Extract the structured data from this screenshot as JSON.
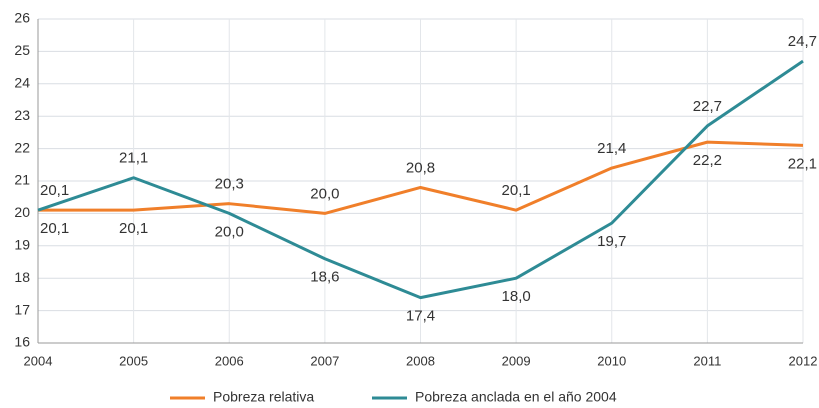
{
  "chart_data": {
    "type": "line",
    "categories": [
      "2004",
      "2005",
      "2006",
      "2007",
      "2008",
      "2009",
      "2010",
      "2011",
      "2012"
    ],
    "series": [
      {
        "name": "Pobreza relativa",
        "color": "#f07f2a",
        "values": [
          20.1,
          20.1,
          20.3,
          20.0,
          20.8,
          20.1,
          21.4,
          22.2,
          22.1
        ],
        "value_labels": [
          "20,1",
          "20,1",
          "20,3",
          "20,0",
          "20,8",
          "20,1",
          "21,4",
          "22,2",
          "22,1"
        ]
      },
      {
        "name": "Pobreza anclada en el año 2004",
        "color": "#2e8b95",
        "values": [
          20.1,
          21.1,
          20.0,
          18.6,
          17.4,
          18.0,
          19.7,
          22.7,
          24.7
        ],
        "value_labels": [
          "20,1",
          "21,1",
          "20,0",
          "18,6",
          "17,4",
          "18,0",
          "19,7",
          "22,7",
          "24,7"
        ]
      }
    ],
    "ylim": [
      16,
      26
    ],
    "yticks": [
      16,
      17,
      18,
      19,
      20,
      21,
      22,
      23,
      24,
      25,
      26
    ],
    "grid": true,
    "legend": "bottom"
  }
}
